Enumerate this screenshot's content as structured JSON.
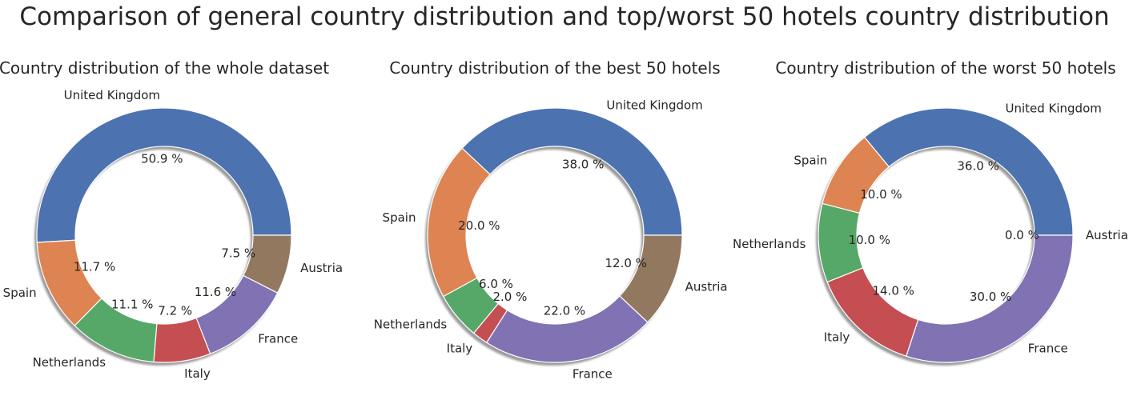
{
  "suptitle": "Comparison of general country distribution and top/worst 50 hotels country distribution",
  "chart_data": [
    {
      "type": "pie",
      "style": "donut",
      "title": "Country distribution of the whole dataset",
      "categories": [
        "United Kingdom",
        "Spain",
        "Netherlands",
        "Italy",
        "France",
        "Austria"
      ],
      "values": [
        50.9,
        11.7,
        11.1,
        7.2,
        11.6,
        7.5
      ],
      "value_labels": [
        "50.9 %",
        "11.7 %",
        "11.1 %",
        "7.2 %",
        "11.6 %",
        "7.5 %"
      ],
      "colors": [
        "#4c72b0",
        "#dd8452",
        "#55a868",
        "#c44e52",
        "#8172b3",
        "#937860"
      ],
      "start_angle": 0,
      "direction": "counterclockwise",
      "shadow": true
    },
    {
      "type": "pie",
      "style": "donut",
      "title": "Country distribution of the best 50 hotels",
      "categories": [
        "United Kingdom",
        "Spain",
        "Netherlands",
        "Italy",
        "France",
        "Austria"
      ],
      "values": [
        38.0,
        20.0,
        6.0,
        2.0,
        22.0,
        12.0
      ],
      "value_labels": [
        "38.0 %",
        "20.0 %",
        "6.0 %",
        "2.0 %",
        "22.0 %",
        "12.0 %"
      ],
      "colors": [
        "#4c72b0",
        "#dd8452",
        "#55a868",
        "#c44e52",
        "#8172b3",
        "#937860"
      ],
      "start_angle": 0,
      "direction": "counterclockwise",
      "shadow": true
    },
    {
      "type": "pie",
      "style": "donut",
      "title": "Country distribution of the worst 50 hotels",
      "categories": [
        "United Kingdom",
        "Spain",
        "Netherlands",
        "Italy",
        "France",
        "Austria"
      ],
      "values": [
        36.0,
        10.0,
        10.0,
        14.0,
        30.0,
        0.0
      ],
      "value_labels": [
        "36.0 %",
        "10.0 %",
        "10.0 %",
        "14.0 %",
        "30.0 %",
        "0.0 %"
      ],
      "colors": [
        "#4c72b0",
        "#dd8452",
        "#55a868",
        "#c44e52",
        "#8172b3",
        "#937860"
      ],
      "start_angle": 0,
      "direction": "counterclockwise",
      "shadow": true
    }
  ]
}
